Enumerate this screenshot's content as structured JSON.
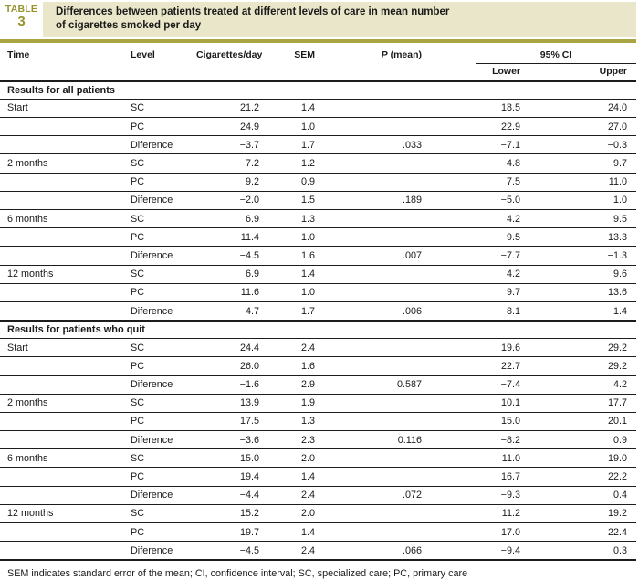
{
  "colors": {
    "accent": "#97922c",
    "accent_line": "#a9a542",
    "beige": "#eae6c9",
    "rule": "#1c1c1c"
  },
  "masthead": {
    "table_word": "TABLE",
    "table_number": "3",
    "title_line1": "Differences between patients treated at different levels of care in mean number",
    "title_line2": "of cigarettes smoked per day"
  },
  "columns": {
    "time": "Time",
    "level": "Level",
    "cigarettes": "Cigarettes/day",
    "sem": "SEM",
    "p_italic": "P",
    "p_rest": " (mean)",
    "ci": "95% CI",
    "lower": "Lower",
    "upper": "Upper"
  },
  "table": {
    "sections": [
      {
        "header": "Results for all patients",
        "rows": [
          [
            "Start",
            "SC",
            "21.2",
            "1.4",
            "",
            "18.5",
            "24.0"
          ],
          [
            "",
            "PC",
            "24.9",
            "1.0",
            "",
            "22.9",
            "27.0"
          ],
          [
            "",
            "Diference",
            "−3.7",
            "1.7",
            ".033",
            "−7.1",
            "−0.3"
          ],
          [
            "2 months",
            "SC",
            "7.2",
            "1.2",
            "",
            "4.8",
            "9.7"
          ],
          [
            "",
            "PC",
            "9.2",
            "0.9",
            "",
            "7.5",
            "11.0"
          ],
          [
            "",
            "Diference",
            "−2.0",
            "1.5",
            ".189",
            "−5.0",
            "1.0"
          ],
          [
            "6 months",
            "SC",
            "6.9",
            "1.3",
            "",
            "4.2",
            "9.5"
          ],
          [
            "",
            "PC",
            "11.4",
            "1.0",
            "",
            "9.5",
            "13.3"
          ],
          [
            "",
            "Diference",
            "−4.5",
            "1.6",
            ".007",
            "−7.7",
            "−1.3"
          ],
          [
            "12 months",
            "SC",
            "6.9",
            "1.4",
            "",
            "4.2",
            "9.6"
          ],
          [
            "",
            "PC",
            "11.6",
            "1.0",
            "",
            "9.7",
            "13.6"
          ],
          [
            "",
            "Diference",
            "−4.7",
            "1.7",
            ".006",
            "−8.1",
            "−1.4"
          ]
        ]
      },
      {
        "header": "Results for patients who quit",
        "rows": [
          [
            "Start",
            "SC",
            "24.4",
            "2.4",
            "",
            "19.6",
            "29.2"
          ],
          [
            "",
            "PC",
            "26.0",
            "1.6",
            "",
            "22.7",
            "29.2"
          ],
          [
            "",
            "Diference",
            "−1.6",
            "2.9",
            "0.587",
            "−7.4",
            "4.2"
          ],
          [
            "2 months",
            "SC",
            "13.9",
            "1.9",
            "",
            "10.1",
            "17.7"
          ],
          [
            "",
            "PC",
            "17.5",
            "1.3",
            "",
            "15.0",
            "20.1"
          ],
          [
            "",
            "Diference",
            "−3.6",
            "2.3",
            "0.116",
            "−8.2",
            "0.9"
          ],
          [
            "6 months",
            "SC",
            "15.0",
            "2.0",
            "",
            "11.0",
            "19.0"
          ],
          [
            "",
            "PC",
            "19.4",
            "1.4",
            "",
            "16.7",
            "22.2"
          ],
          [
            "",
            "Diference",
            "−4.4",
            "2.4",
            ".072",
            "−9.3",
            "0.4"
          ],
          [
            "12 months",
            "SC",
            "15.2",
            "2.0",
            "",
            "11.2",
            "19.2"
          ],
          [
            "",
            "PC",
            "19.7",
            "1.4",
            "",
            "17.0",
            "22.4"
          ],
          [
            "",
            "Diference",
            "−4.5",
            "2.4",
            ".066",
            "−9.4",
            "0.3"
          ]
        ]
      }
    ]
  },
  "footnote": "SEM indicates standard error of the mean; CI, confidence interval; SC, specialized care; PC, primary care"
}
